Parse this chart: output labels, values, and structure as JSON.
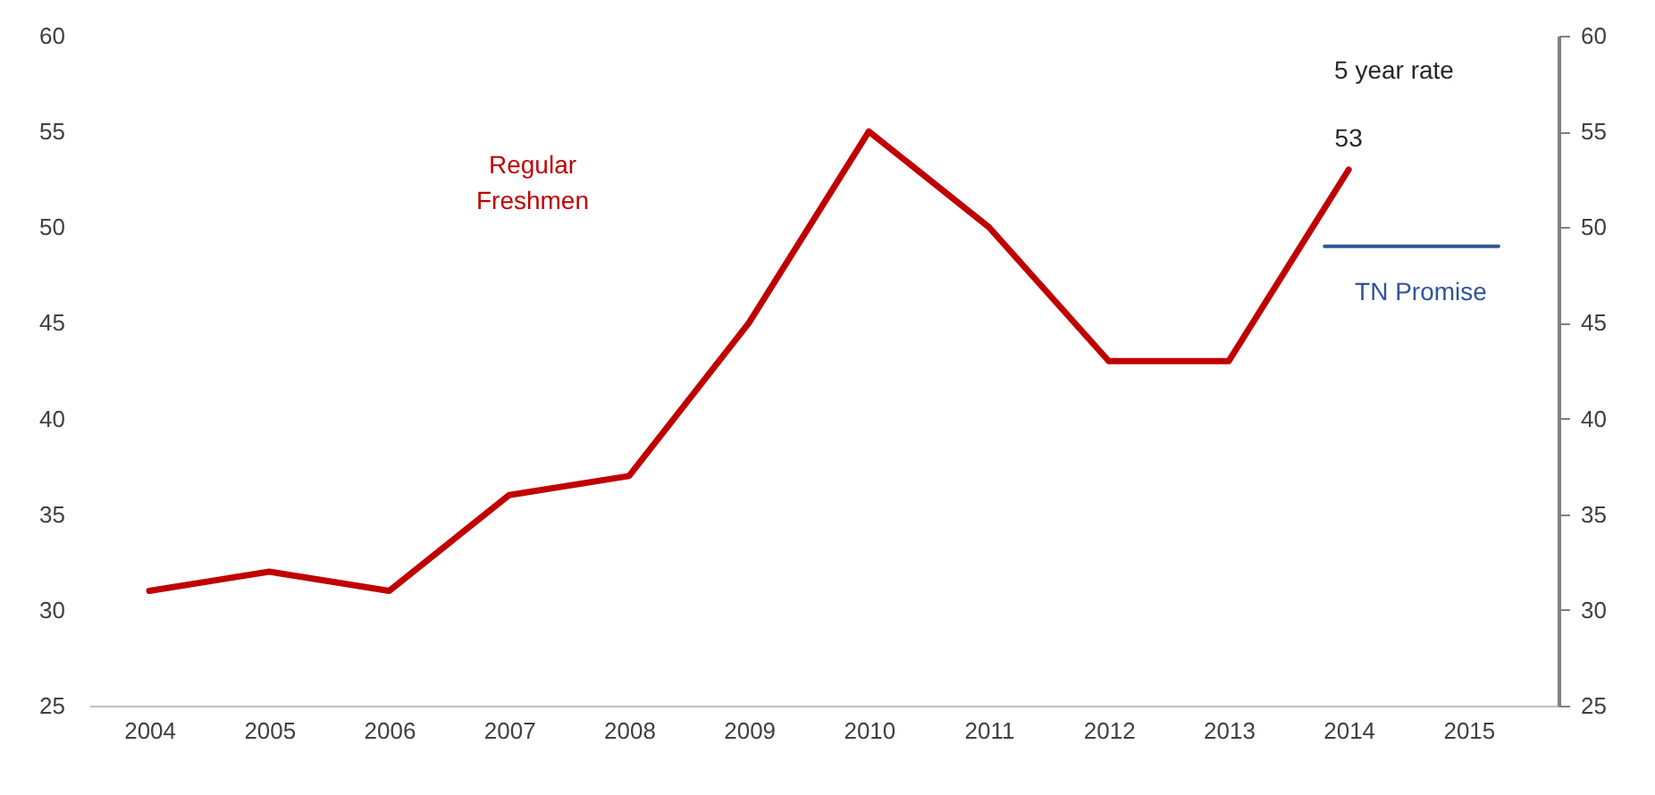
{
  "chart_data": {
    "type": "line",
    "x": [
      2004,
      2005,
      2006,
      2007,
      2008,
      2009,
      2010,
      2011,
      2012,
      2013,
      2014
    ],
    "series": [
      {
        "name": "Regular Freshmen",
        "color": "#c00000",
        "values": [
          31,
          32,
          31,
          36,
          37,
          45,
          55,
          50,
          43,
          43,
          53
        ]
      },
      {
        "name": "TN Promise",
        "color": "#2e5597",
        "x": [
          2013.8,
          2015.25
        ],
        "values": [
          49,
          49
        ]
      }
    ],
    "xlim": [
      2003.5,
      2015.75
    ],
    "xticks": [
      2004,
      2005,
      2006,
      2007,
      2008,
      2009,
      2010,
      2011,
      2012,
      2013,
      2014,
      2015
    ],
    "ylim": [
      25,
      60
    ],
    "yticks": [
      25,
      30,
      35,
      40,
      45,
      50,
      55,
      60
    ],
    "y2lim": [
      25,
      60
    ],
    "y2ticks": [
      25,
      30,
      35,
      40,
      45,
      50,
      55,
      60
    ],
    "annotations": [
      "5 year rate",
      {
        "text": "53",
        "x": 2014,
        "y": 53
      }
    ],
    "grid": false,
    "line_style": "solid"
  }
}
